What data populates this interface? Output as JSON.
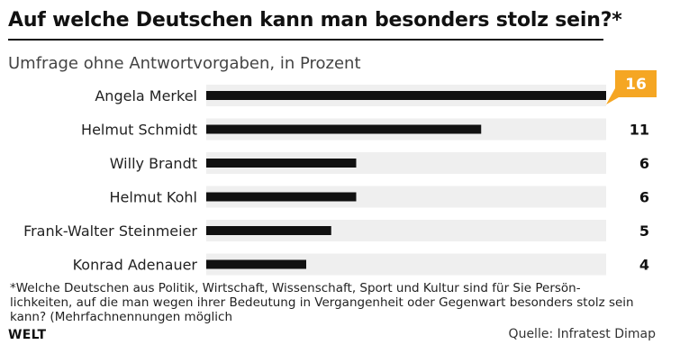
{
  "header": {
    "title": "Auf welche Deutschen kann man besonders stolz sein?*",
    "subtitle": "Umfrage ohne Antwortvorgaben, in Prozent"
  },
  "chart_data": {
    "type": "bar",
    "orientation": "horizontal",
    "categories": [
      "Angela Merkel",
      "Helmut Schmidt",
      "Willy Brandt",
      "Helmut Kohl",
      "Frank-Walter Steinmeier",
      "Konrad Adenauer"
    ],
    "values": [
      16,
      11,
      6,
      6,
      5,
      4
    ],
    "value_labels": [
      "16",
      "11",
      "6",
      "6",
      "5",
      "4"
    ],
    "highlight_index": 0,
    "xlim": [
      0,
      16
    ],
    "grid": false,
    "colors": {
      "bar": "#111111",
      "track": "#efefef",
      "highlight": "#f5a623",
      "highlight_text": "#ffffff",
      "value_text": "#111111"
    }
  },
  "footer": {
    "footnote": "*Welche Deutschen aus Politik, Wirtschaft, Wissenschaft, Sport und Kultur sind für Sie Persön- lichkeiten, auf die man wegen ihrer Bedeutung in Vergangenheit oder Gegenwart besonders stolz sein kann? (Mehrfachnennungen möglich",
    "brand": "WELT",
    "source": "Quelle: Infratest Dimap"
  }
}
